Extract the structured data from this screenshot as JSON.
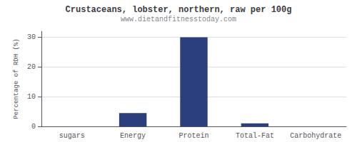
{
  "chart_data": {
    "type": "bar",
    "title": "Crustaceans, lobster, northern, raw per 100g",
    "subtitle": "www.dietandfitnesstoday.com",
    "categories": [
      "sugars",
      "Energy",
      "Protein",
      "Total-Fat",
      "Carbohydrate"
    ],
    "values": [
      0,
      4.5,
      30,
      1.0,
      0
    ],
    "color": "#2b3f7e",
    "ylabel": "Percentage of RDH (%)",
    "ylim": [
      0,
      32
    ],
    "yticks": [
      0,
      10,
      20,
      30
    ],
    "grid": true
  }
}
